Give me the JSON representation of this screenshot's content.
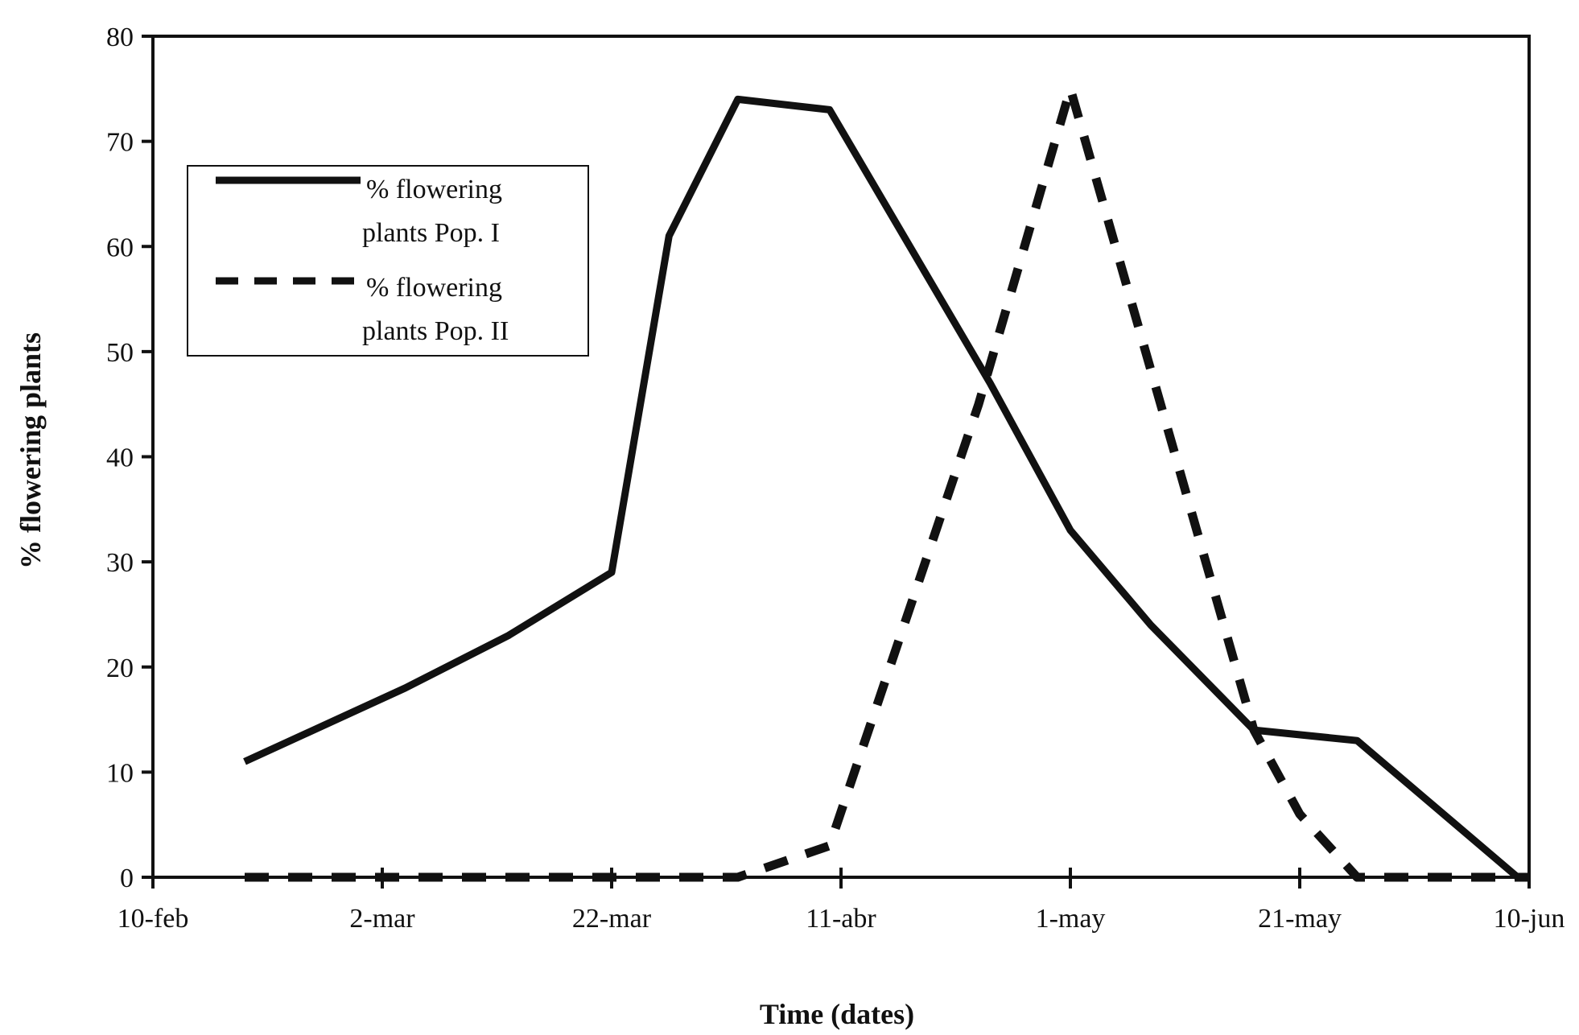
{
  "chart_data": {
    "type": "line",
    "title": "",
    "xlabel": "Time (dates)",
    "ylabel": "% flowering plants",
    "x_ticks": [
      "10-feb",
      "2-mar",
      "22-mar",
      "11-abr",
      "1-may",
      "21-may",
      "10-jun"
    ],
    "xlim": [
      "10-feb",
      "10-jun"
    ],
    "ylim": [
      0,
      80
    ],
    "y_ticks": [
      "0",
      "10",
      "20",
      "30",
      "40",
      "50",
      "60",
      "70",
      "80"
    ],
    "grid": false,
    "legend_position": "top-left",
    "series": [
      {
        "name": "% flowering plants Pop. I",
        "legend_line1": "% flowering",
        "legend_line2": "plants Pop. I",
        "style": "solid",
        "color": "#111111",
        "points": [
          {
            "x": "18-feb",
            "y": 11
          },
          {
            "x": "4-mar",
            "y": 18
          },
          {
            "x": "13-mar",
            "y": 23
          },
          {
            "x": "22-mar",
            "y": 29
          },
          {
            "x": "27-mar",
            "y": 61
          },
          {
            "x": "2-abr",
            "y": 74
          },
          {
            "x": "10-abr",
            "y": 73
          },
          {
            "x": "24-abr",
            "y": 47
          },
          {
            "x": "1-may",
            "y": 33
          },
          {
            "x": "8-may",
            "y": 24
          },
          {
            "x": "17-may",
            "y": 14
          },
          {
            "x": "26-may",
            "y": 13
          },
          {
            "x": "9-jun",
            "y": 0
          }
        ]
      },
      {
        "name": "% flowering plants Pop. II",
        "legend_line1": "% flowering",
        "legend_line2": "plants Pop. II",
        "style": "dashed",
        "color": "#111111",
        "points": [
          {
            "x": "18-feb",
            "y": 0
          },
          {
            "x": "2-abr",
            "y": 0
          },
          {
            "x": "10-abr",
            "y": 3
          },
          {
            "x": "23-abr",
            "y": 45
          },
          {
            "x": "1-may",
            "y": 75
          },
          {
            "x": "17-may",
            "y": 14
          },
          {
            "x": "21-may",
            "y": 6
          },
          {
            "x": "26-may",
            "y": 0
          },
          {
            "x": "10-jun",
            "y": 0
          }
        ]
      }
    ]
  }
}
